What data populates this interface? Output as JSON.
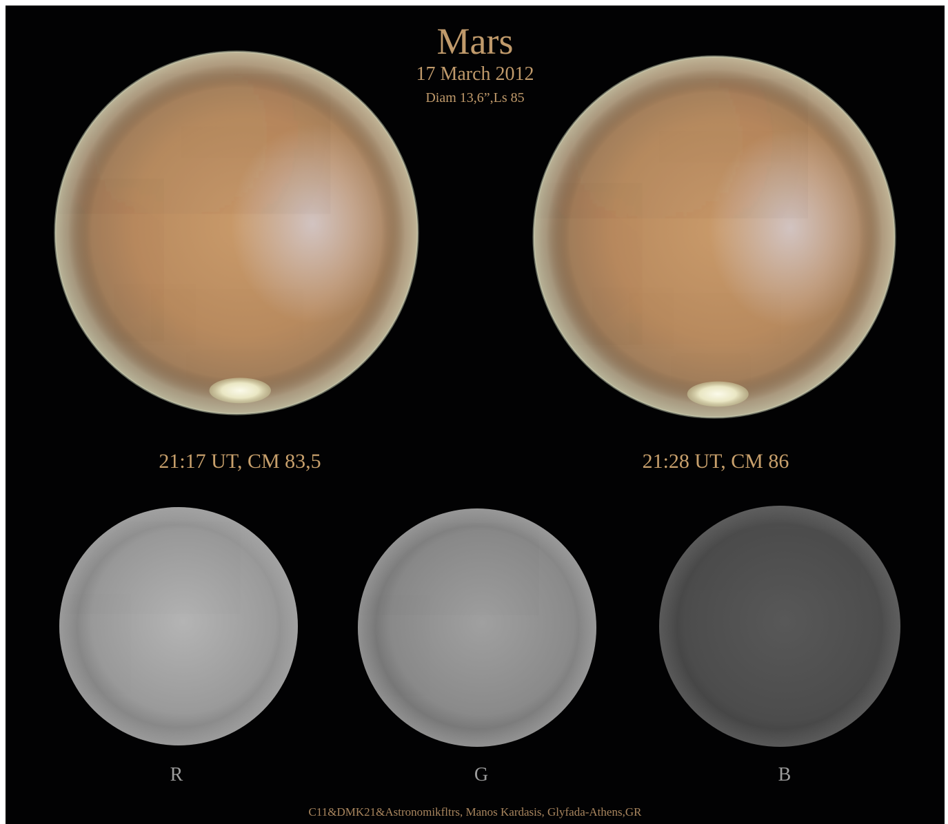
{
  "title": "Mars",
  "date": "17 March 2012",
  "details": "Diam 13,6”,Ls 85",
  "views": [
    {
      "caption": "21:17 UT, CM 83,5"
    },
    {
      "caption": "21:28 UT, CM 86"
    }
  ],
  "channels": [
    "R",
    "G",
    "B"
  ],
  "credit": "C11&DMK21&Astronomikfltrs, Manos Kardasis, Glyfada-Athens,GR",
  "colors": {
    "background": "#020203",
    "text_gold": "#c09a6b",
    "channel_text": "#9c9c9c",
    "mars_ochre": "#b88a5e",
    "polar_cap": "#f2f0d6"
  }
}
